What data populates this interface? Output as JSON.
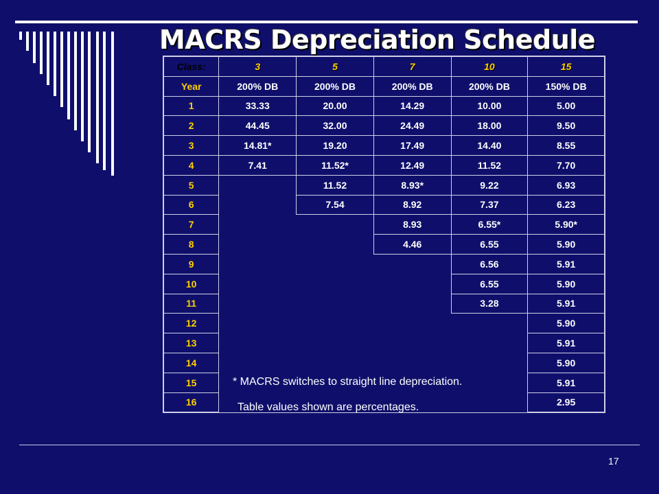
{
  "title": "MACRS Depreciation Schedule",
  "table": {
    "class_label": "Class:",
    "classes": [
      "3",
      "5",
      "7",
      "10",
      "15"
    ],
    "year_label": "Year",
    "methods": [
      "200% DB",
      "200% DB",
      "200% DB",
      "200% DB",
      "150% DB"
    ],
    "rows": [
      {
        "year": "1",
        "c3": "33.33",
        "c5": "20.00",
        "c7": "14.29",
        "c10": "10.00",
        "c15": "5.00"
      },
      {
        "year": "2",
        "c3": "44.45",
        "c5": "32.00",
        "c7": "24.49",
        "c10": "18.00",
        "c15": "9.50"
      },
      {
        "year": "3",
        "c3": "14.81*",
        "c5": "19.20",
        "c7": "17.49",
        "c10": "14.40",
        "c15": "8.55"
      },
      {
        "year": "4",
        "c3": "7.41",
        "c5": "11.52*",
        "c7": "12.49",
        "c10": "11.52",
        "c15": "7.70"
      },
      {
        "year": "5",
        "c5": "11.52",
        "c7": "8.93*",
        "c10": "9.22",
        "c15": "6.93"
      },
      {
        "year": "6",
        "c5": "7.54",
        "c7": "8.92",
        "c10": "7.37",
        "c15": "6.23"
      },
      {
        "year": "7",
        "c7": "8.93",
        "c10": "6.55*",
        "c15": "5.90*"
      },
      {
        "year": "8",
        "c7": "4.46",
        "c10": "6.55",
        "c15": "5.90"
      },
      {
        "year": "9",
        "c10": "6.56",
        "c15": "5.91"
      },
      {
        "year": "10",
        "c10": "6.55",
        "c15": "5.90"
      },
      {
        "year": "11",
        "c10": "3.28",
        "c15": "5.91"
      },
      {
        "year": "12",
        "c15": "5.90"
      },
      {
        "year": "13",
        "c15": "5.91"
      },
      {
        "year": "14",
        "c15": "5.90"
      },
      {
        "year": "15",
        "c15": "5.91"
      },
      {
        "year": "16",
        "c15": "2.95"
      }
    ]
  },
  "notes": {
    "line1": "* MACRS switches to straight line depreciation.",
    "line2": "Table values shown are percentages."
  },
  "page_number": "17",
  "colors": {
    "background": "#0f0f6b",
    "year_text": "#ffd000",
    "text": "#ffffff"
  }
}
